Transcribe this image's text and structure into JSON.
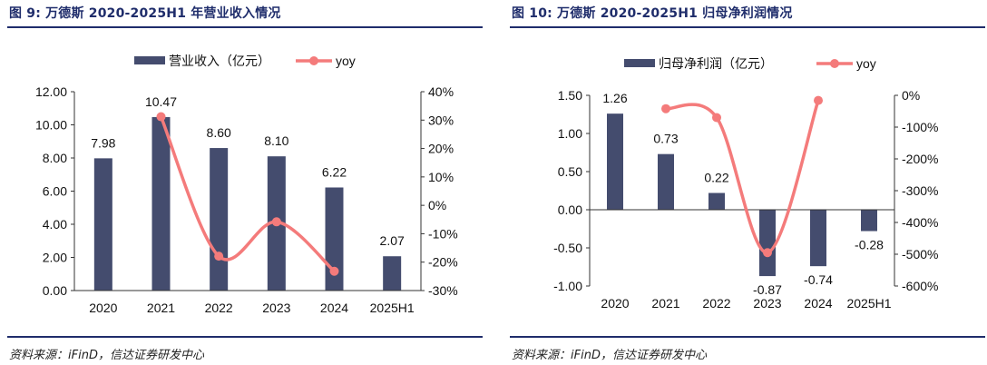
{
  "source": "资料来源：iFinD，信达证券研发中心",
  "chart_data": [
    {
      "type": "bar",
      "figure_title": "图 9:  万德斯 2020-2025H1 年营业收入情况",
      "categories": [
        "2020",
        "2021",
        "2022",
        "2023",
        "2024",
        "2025H1"
      ],
      "series": [
        {
          "name": "营业收入（亿元）",
          "type": "bar",
          "axis": "left",
          "color": "#444c6e",
          "values": [
            7.98,
            10.47,
            8.6,
            8.1,
            6.22,
            2.07
          ],
          "labels": [
            "7.98",
            "10.47",
            "8.60",
            "8.10",
            "6.22",
            "2.07"
          ]
        },
        {
          "name": "yoy",
          "type": "line",
          "axis": "right",
          "color": "#f47b7b",
          "values": [
            null,
            31.2,
            -17.9,
            -5.8,
            -23.2,
            null
          ]
        }
      ],
      "y_left": {
        "ylim": [
          0,
          12
        ],
        "ticks": [
          "0.00",
          "2.00",
          "4.00",
          "6.00",
          "8.00",
          "10.00",
          "12.00"
        ]
      },
      "y_right": {
        "ylim": [
          -30,
          40
        ],
        "ticks": [
          "-30%",
          "-20%",
          "-10%",
          "0%",
          "10%",
          "20%",
          "30%",
          "40%"
        ]
      },
      "legend_position": "top"
    },
    {
      "type": "bar",
      "figure_title": "图 10:  万德斯 2020-2025H1 归母净利润情况",
      "categories": [
        "2020",
        "2021",
        "2022",
        "2023",
        "2024",
        "2025H1"
      ],
      "series": [
        {
          "name": "归母净利润（亿元）",
          "type": "bar",
          "axis": "left",
          "color": "#444c6e",
          "values": [
            1.26,
            0.73,
            0.22,
            -0.87,
            -0.74,
            -0.28
          ],
          "labels": [
            "1.26",
            "0.73",
            "0.22",
            "-0.87",
            "-0.74",
            "-0.28"
          ]
        },
        {
          "name": "yoy",
          "type": "line",
          "axis": "right",
          "color": "#f47b7b",
          "values": [
            null,
            -42,
            -70,
            -495,
            -16,
            null
          ]
        }
      ],
      "y_left": {
        "ylim": [
          -1.0,
          1.5
        ],
        "ticks": [
          "-1.00",
          "-0.50",
          "0.00",
          "0.50",
          "1.00",
          "1.50"
        ]
      },
      "y_right": {
        "ylim": [
          -600,
          0
        ],
        "ticks": [
          "-600%",
          "-500%",
          "-400%",
          "-300%",
          "-200%",
          "-100%",
          "0%"
        ]
      },
      "legend_position": "top"
    }
  ]
}
